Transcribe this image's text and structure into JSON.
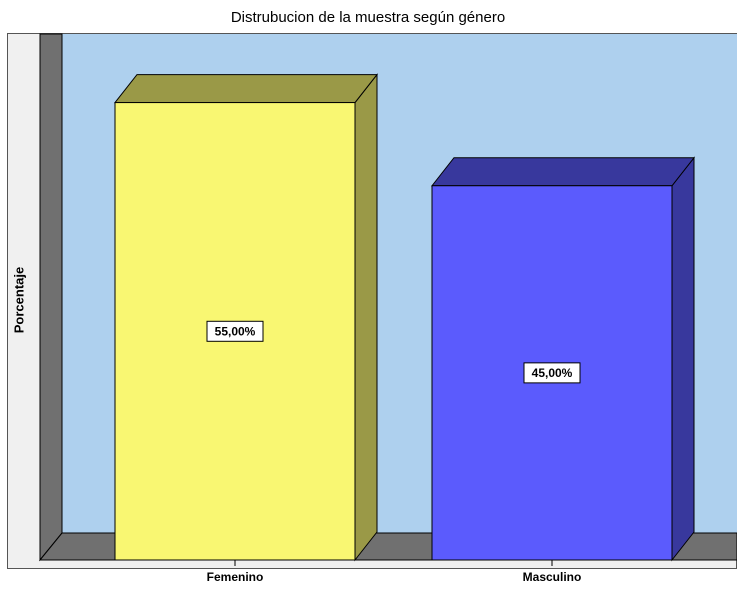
{
  "chart_data": {
    "type": "bar3d",
    "title": "Distrubucion de la muestra según género",
    "ylabel": "Porcentaje",
    "categories": [
      "Femenino",
      "Masculino"
    ],
    "values": [
      55,
      45
    ],
    "value_labels": [
      "55,00%",
      "45,00%"
    ],
    "colors": [
      "#f9f772",
      "#5b5bfd"
    ],
    "ylim": [
      0,
      60
    ]
  }
}
